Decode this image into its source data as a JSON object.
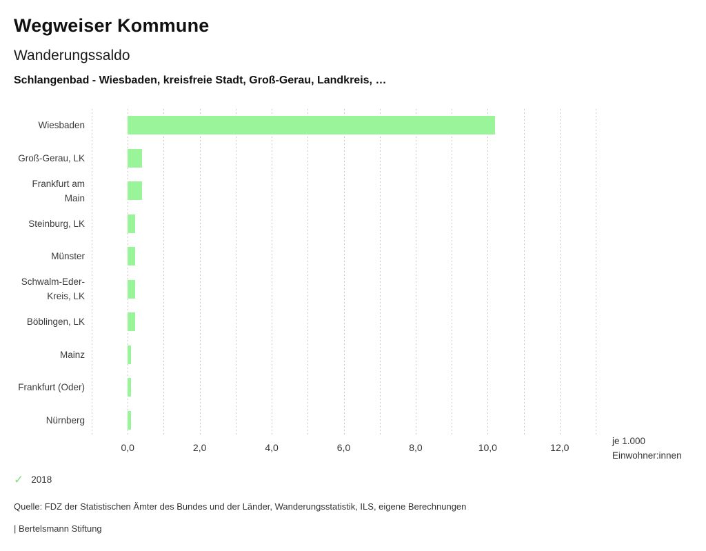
{
  "header": {
    "title": "Wegweiser Kommune",
    "subtitle": "Wanderungssaldo",
    "selection": "Schlangenbad - Wiesbaden, kreisfreie Stadt, Groß-Gerau, Landkreis, …"
  },
  "chart_data": {
    "type": "bar",
    "orientation": "horizontal",
    "title": "Wanderungssaldo",
    "categories": [
      "Wiesbaden",
      "Groß-Gerau, LK",
      "Frankfurt am Main",
      "Steinburg, LK",
      "Münster",
      "Schwalm-Eder-Kreis, LK",
      "Böblingen, LK",
      "Mainz",
      "Frankfurt (Oder)",
      "Nürnberg"
    ],
    "series": [
      {
        "name": "2018",
        "values": [
          10.2,
          0.4,
          0.4,
          0.2,
          0.2,
          0.2,
          0.2,
          0.1,
          0.1,
          0.1
        ]
      }
    ],
    "xlabel": "je 1.000 Einwohner:innen",
    "xlim": [
      -1,
      13
    ],
    "grid": true,
    "grid_interval": 1,
    "tick_values": [
      0,
      2,
      4,
      6,
      8,
      10,
      12
    ],
    "tick_labels": [
      "0,0",
      "2,0",
      "4,0",
      "6,0",
      "8,0",
      "10,0",
      "12,0"
    ],
    "bar_color": "#9af59a",
    "legend_position": "bottom-left"
  },
  "legend": {
    "check_icon": "✓",
    "check_color": "#82e082",
    "year": "2018"
  },
  "footer": {
    "source": "Quelle: FDZ der Statistischen Ämter des Bundes und der Länder, Wanderungsstatistik, ILS, eigene Berechnungen",
    "branding": "| Bertelsmann Stiftung"
  }
}
